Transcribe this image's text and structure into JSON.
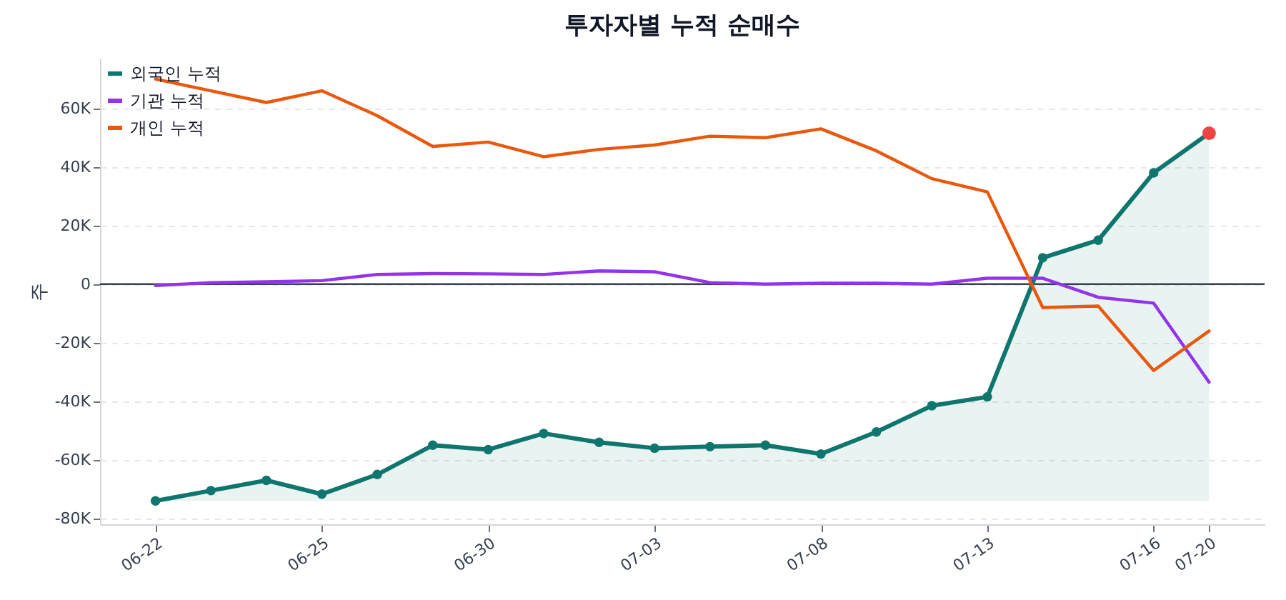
{
  "chart_data": {
    "type": "line",
    "title": "투자자별 누적 순매수",
    "ylabel": "주",
    "categories": [
      "06-22",
      null,
      null,
      "06-25",
      null,
      null,
      "06-30",
      null,
      null,
      "07-03",
      null,
      null,
      "07-08",
      null,
      null,
      "07-13",
      null,
      null,
      "07-16",
      "07-20"
    ],
    "series": [
      {
        "name": "외국인 누적",
        "color": "#0f766e",
        "marker": "circle",
        "values": [
          -74000,
          -70500,
          -67000,
          -71700,
          -65000,
          -55000,
          -56500,
          -51000,
          -54000,
          -56000,
          -55500,
          -55000,
          -58000,
          -50500,
          -41500,
          -38500,
          9000,
          15000,
          38000,
          51500
        ],
        "lower": [
          -74000,
          -74000,
          -74000,
          -74000,
          -74000,
          -74000,
          -74000,
          -74000,
          -74000,
          -74000,
          -74000,
          -74000,
          -74000,
          -74000,
          -74000,
          -74000,
          -74000,
          -74000,
          -74000,
          -74000
        ],
        "upper": [
          -74000,
          -70500,
          -67000,
          -71700,
          -65000,
          -55000,
          -56500,
          -51000,
          -54000,
          -56000,
          -55500,
          -55000,
          -58000,
          -50500,
          -41500,
          -38500,
          9000,
          15000,
          38000,
          51500
        ]
      },
      {
        "name": "기관 누적",
        "color": "#9333ea",
        "values": [
          -500,
          500,
          800,
          1200,
          3300,
          3600,
          3500,
          3300,
          4500,
          4200,
          500,
          0,
          300,
          300,
          0,
          2000,
          2000,
          -4500,
          -6500,
          -33500
        ]
      },
      {
        "name": "개인 누적",
        "color": "#ea580c",
        "values": [
          70000,
          66000,
          62000,
          66000,
          57500,
          47000,
          48500,
          43500,
          46000,
          47500,
          50500,
          50000,
          53000,
          45500,
          36000,
          31500,
          -8000,
          -7500,
          -29500,
          -16000
        ]
      },
      {
        "type": "scatter",
        "color": "#ef4444",
        "values": [
          null,
          null,
          null,
          null,
          null,
          null,
          null,
          null,
          null,
          null,
          null,
          null,
          null,
          null,
          null,
          null,
          null,
          null,
          null,
          51500
        ]
      }
    ],
    "ylim": [
      -82000,
      77000
    ],
    "yticks": [
      {
        "value": -80000,
        "label": "-80K"
      },
      {
        "value": -60000,
        "label": "-60K"
      },
      {
        "value": -40000,
        "label": "-40K"
      },
      {
        "value": -20000,
        "label": "-20K"
      },
      0,
      {
        "value": 20000,
        "label": "20K"
      },
      {
        "value": 40000,
        "label": "40K"
      },
      {
        "value": 60000,
        "label": "60K"
      }
    ],
    "ref_lines": [
      {
        "axis": "y",
        "value": 0,
        "color": "#374151"
      }
    ],
    "grid": "y",
    "legend": "top left"
  }
}
